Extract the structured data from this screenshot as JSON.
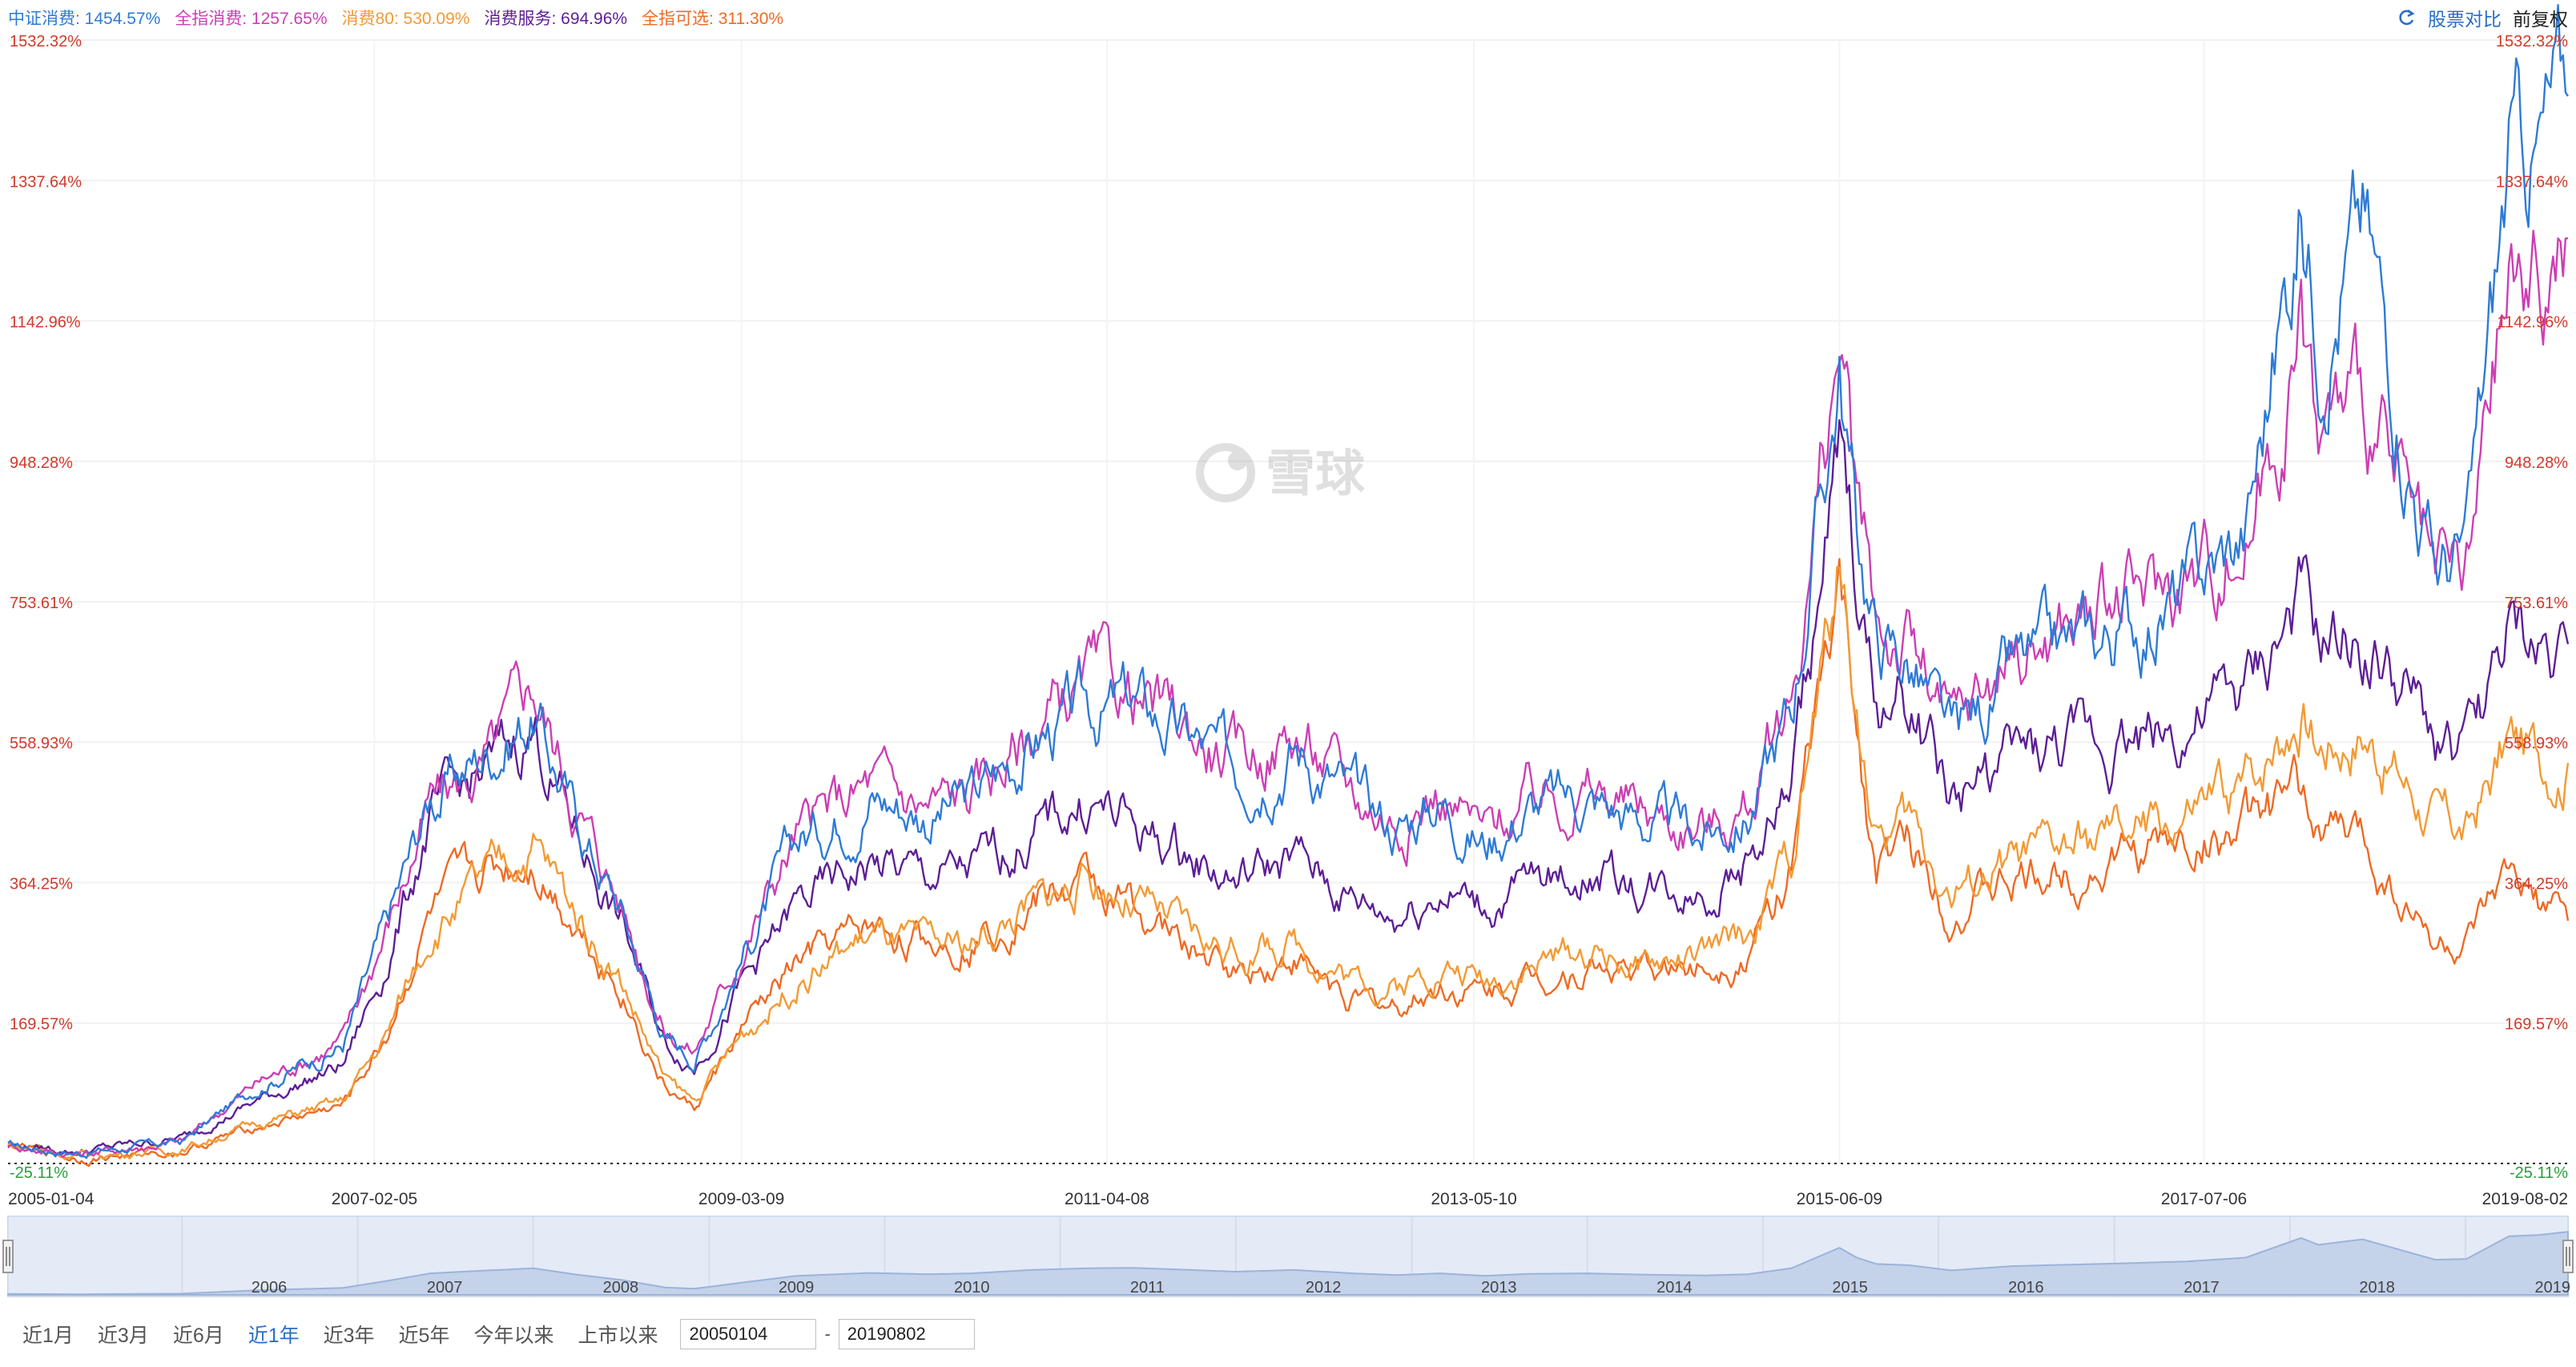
{
  "legend": [
    {
      "label": "中证消费: 1454.57%",
      "color": "#2e7bd6"
    },
    {
      "label": "全指消费: 1257.65%",
      "color": "#cc3fb4"
    },
    {
      "label": "消费80: 530.09%",
      "color": "#f39a34"
    },
    {
      "label": "消费服务: 694.96%",
      "color": "#5d1f96"
    },
    {
      "label": "全指可选: 311.30%",
      "color": "#ee6a24"
    }
  ],
  "toolbar": {
    "compare_label": "股票对比",
    "adjust_label": "前复权",
    "swap_icon": "swap-icon"
  },
  "watermark": {
    "text": "雪球",
    "icon": "snowball-logo-icon"
  },
  "range_buttons": [
    {
      "label": "近1月",
      "active": false
    },
    {
      "label": "近3月",
      "active": false
    },
    {
      "label": "近6月",
      "active": false
    },
    {
      "label": "近1年",
      "active": true
    },
    {
      "label": "近3年",
      "active": false
    },
    {
      "label": "近5年",
      "active": false
    },
    {
      "label": "今年以来",
      "active": false
    },
    {
      "label": "上市以来",
      "active": false
    }
  ],
  "date_range": {
    "start": "20050104",
    "separator": "-",
    "end": "20190802"
  },
  "chart_data": {
    "type": "line",
    "x_range": [
      "2005-01-04",
      "2019-08-02"
    ],
    "x_ticks": [
      "2005-01-04",
      "2007-02-05",
      "2009-03-09",
      "2011-04-08",
      "2013-05-10",
      "2015-06-09",
      "2017-07-06",
      "2019-08-02"
    ],
    "y_ticks": [
      -25.11,
      169.57,
      364.25,
      558.93,
      753.61,
      948.28,
      1142.96,
      1337.64,
      1532.32
    ],
    "y_tick_labels": [
      "-25.11%",
      "169.57%",
      "364.25%",
      "558.93%",
      "753.61%",
      "948.28%",
      "1142.96%",
      "1337.64%",
      "1532.32%"
    ],
    "ylim": [
      -25.11,
      1532.32
    ],
    "baseline": -25.11,
    "grid": true,
    "navigator_years": [
      "2006",
      "2007",
      "2008",
      "2009",
      "2010",
      "2011",
      "2012",
      "2013",
      "2014",
      "2015",
      "2016",
      "2017",
      "2018",
      "2019"
    ],
    "series": [
      {
        "name": "中证消费",
        "color": "#2e7bd6",
        "final": 1454.57,
        "points": [
          [
            "2005-01-04",
            0
          ],
          [
            "2005-06-01",
            -10
          ],
          [
            "2006-01-01",
            5
          ],
          [
            "2006-06-01",
            80
          ],
          [
            "2006-12-01",
            140
          ],
          [
            "2007-03-01",
            300
          ],
          [
            "2007-06-01",
            480
          ],
          [
            "2007-10-01",
            550
          ],
          [
            "2008-01-01",
            600
          ],
          [
            "2008-04-01",
            450
          ],
          [
            "2008-07-01",
            330
          ],
          [
            "2008-10-01",
            150
          ],
          [
            "2008-12-01",
            120
          ],
          [
            "2009-03-09",
            260
          ],
          [
            "2009-07-01",
            420
          ],
          [
            "2009-12-01",
            490
          ],
          [
            "2010-04-01",
            460
          ],
          [
            "2010-07-01",
            480
          ],
          [
            "2010-11-01",
            560
          ],
          [
            "2011-03-01",
            600
          ],
          [
            "2011-06-01",
            610
          ],
          [
            "2011-10-01",
            560
          ],
          [
            "2012-01-01",
            520
          ],
          [
            "2012-05-01",
            560
          ],
          [
            "2012-09-01",
            480
          ],
          [
            "2012-12-01",
            440
          ],
          [
            "2013-03-01",
            480
          ],
          [
            "2013-06-01",
            420
          ],
          [
            "2013-09-01",
            470
          ],
          [
            "2014-01-01",
            480
          ],
          [
            "2014-05-01",
            450
          ],
          [
            "2014-09-01",
            430
          ],
          [
            "2014-12-01",
            460
          ],
          [
            "2015-03-01",
            600
          ],
          [
            "2015-06-09",
            1080
          ],
          [
            "2015-07-15",
            850
          ],
          [
            "2015-08-25",
            700
          ],
          [
            "2015-11-01",
            670
          ],
          [
            "2016-01-28",
            550
          ],
          [
            "2016-06-01",
            650
          ],
          [
            "2016-12-01",
            700
          ],
          [
            "2017-06-01",
            760
          ],
          [
            "2017-10-01",
            850
          ],
          [
            "2018-01-24",
            1310
          ],
          [
            "2018-03-01",
            1150
          ],
          [
            "2018-06-01",
            1280
          ],
          [
            "2018-10-30",
            800
          ],
          [
            "2019-01-03",
            820
          ],
          [
            "2019-04-01",
            1350
          ],
          [
            "2019-06-01",
            1380
          ],
          [
            "2019-08-02",
            1454.57
          ]
        ]
      },
      {
        "name": "全指消费",
        "color": "#cc3fb4",
        "final": 1257.65,
        "points": [
          [
            "2005-01-04",
            0
          ],
          [
            "2005-06-01",
            -12
          ],
          [
            "2006-01-01",
            5
          ],
          [
            "2006-06-01",
            85
          ],
          [
            "2006-12-01",
            145
          ],
          [
            "2007-03-01",
            300
          ],
          [
            "2007-06-01",
            470
          ],
          [
            "2007-10-01",
            530
          ],
          [
            "2008-01-01",
            640
          ],
          [
            "2008-04-01",
            470
          ],
          [
            "2008-07-01",
            340
          ],
          [
            "2008-10-01",
            160
          ],
          [
            "2008-12-01",
            130
          ],
          [
            "2009-03-09",
            270
          ],
          [
            "2009-07-01",
            430
          ],
          [
            "2009-12-01",
            500
          ],
          [
            "2010-04-01",
            470
          ],
          [
            "2010-07-01",
            490
          ],
          [
            "2010-11-01",
            570
          ],
          [
            "2011-03-01",
            640
          ],
          [
            "2011-06-01",
            620
          ],
          [
            "2011-10-01",
            570
          ],
          [
            "2012-01-01",
            530
          ],
          [
            "2012-05-01",
            570
          ],
          [
            "2012-09-01",
            490
          ],
          [
            "2012-12-01",
            450
          ],
          [
            "2013-03-01",
            490
          ],
          [
            "2013-06-01",
            430
          ],
          [
            "2013-09-01",
            480
          ],
          [
            "2014-01-01",
            490
          ],
          [
            "2014-05-01",
            460
          ],
          [
            "2014-09-01",
            440
          ],
          [
            "2014-12-01",
            470
          ],
          [
            "2015-03-01",
            620
          ],
          [
            "2015-06-09",
            1110
          ],
          [
            "2015-07-15",
            870
          ],
          [
            "2015-08-25",
            720
          ],
          [
            "2015-11-01",
            690
          ],
          [
            "2016-01-28",
            570
          ],
          [
            "2016-06-01",
            680
          ],
          [
            "2016-12-01",
            740
          ],
          [
            "2017-06-01",
            780
          ],
          [
            "2017-10-01",
            840
          ],
          [
            "2018-01-24",
            1120
          ],
          [
            "2018-03-01",
            980
          ],
          [
            "2018-06-01",
            1050
          ],
          [
            "2018-10-30",
            750
          ],
          [
            "2019-01-03",
            780
          ],
          [
            "2019-04-01",
            1200
          ],
          [
            "2019-06-01",
            1180
          ],
          [
            "2019-08-02",
            1257.65
          ]
        ]
      },
      {
        "name": "消费服务",
        "color": "#5d1f96",
        "final": 694.96,
        "points": [
          [
            "2005-01-04",
            0
          ],
          [
            "2005-06-01",
            -8
          ],
          [
            "2006-01-01",
            10
          ],
          [
            "2006-06-01",
            60
          ],
          [
            "2006-12-01",
            110
          ],
          [
            "2007-03-01",
            250
          ],
          [
            "2007-06-01",
            450
          ],
          [
            "2007-10-01",
            520
          ],
          [
            "2008-01-01",
            580
          ],
          [
            "2008-04-01",
            430
          ],
          [
            "2008-07-01",
            310
          ],
          [
            "2008-10-01",
            140
          ],
          [
            "2008-12-01",
            110
          ],
          [
            "2009-03-09",
            220
          ],
          [
            "2009-07-01",
            330
          ],
          [
            "2009-12-01",
            390
          ],
          [
            "2010-04-01",
            370
          ],
          [
            "2010-07-01",
            380
          ],
          [
            "2010-11-01",
            430
          ],
          [
            "2011-03-01",
            480
          ],
          [
            "2011-06-01",
            440
          ],
          [
            "2011-10-01",
            400
          ],
          [
            "2012-01-01",
            370
          ],
          [
            "2012-05-01",
            400
          ],
          [
            "2012-09-01",
            340
          ],
          [
            "2012-12-01",
            320
          ],
          [
            "2013-03-01",
            360
          ],
          [
            "2013-06-01",
            330
          ],
          [
            "2013-09-01",
            360
          ],
          [
            "2014-01-01",
            380
          ],
          [
            "2014-05-01",
            360
          ],
          [
            "2014-09-01",
            360
          ],
          [
            "2014-12-01",
            390
          ],
          [
            "2015-03-01",
            500
          ],
          [
            "2015-06-09",
            950
          ],
          [
            "2015-07-15",
            780
          ],
          [
            "2015-08-25",
            600
          ],
          [
            "2015-11-01",
            620
          ],
          [
            "2016-01-28",
            480
          ],
          [
            "2016-06-01",
            530
          ],
          [
            "2016-12-01",
            560
          ],
          [
            "2017-06-01",
            580
          ],
          [
            "2017-10-01",
            620
          ],
          [
            "2018-01-24",
            750
          ],
          [
            "2018-03-01",
            680
          ],
          [
            "2018-06-01",
            700
          ],
          [
            "2018-10-30",
            560
          ],
          [
            "2019-01-03",
            540
          ],
          [
            "2019-04-01",
            700
          ],
          [
            "2019-06-01",
            680
          ],
          [
            "2019-08-02",
            694.96
          ]
        ]
      },
      {
        "name": "消费80",
        "color": "#f39a34",
        "final": 530.09,
        "points": [
          [
            "2005-01-04",
            0
          ],
          [
            "2005-06-01",
            -15
          ],
          [
            "2006-01-01",
            -5
          ],
          [
            "2006-06-01",
            30
          ],
          [
            "2006-12-01",
            60
          ],
          [
            "2007-03-01",
            150
          ],
          [
            "2007-06-01",
            300
          ],
          [
            "2007-10-01",
            370
          ],
          [
            "2008-01-01",
            420
          ],
          [
            "2008-04-01",
            320
          ],
          [
            "2008-07-01",
            230
          ],
          [
            "2008-10-01",
            90
          ],
          [
            "2008-12-01",
            60
          ],
          [
            "2009-03-09",
            150
          ],
          [
            "2009-07-01",
            230
          ],
          [
            "2009-12-01",
            290
          ],
          [
            "2010-04-01",
            270
          ],
          [
            "2010-07-01",
            280
          ],
          [
            "2010-11-01",
            330
          ],
          [
            "2011-03-01",
            370
          ],
          [
            "2011-06-01",
            340
          ],
          [
            "2011-10-01",
            290
          ],
          [
            "2012-01-01",
            270
          ],
          [
            "2012-05-01",
            280
          ],
          [
            "2012-09-01",
            230
          ],
          [
            "2012-12-01",
            220
          ],
          [
            "2013-03-01",
            250
          ],
          [
            "2013-06-01",
            230
          ],
          [
            "2013-09-01",
            250
          ],
          [
            "2014-01-01",
            270
          ],
          [
            "2014-05-01",
            250
          ],
          [
            "2014-09-01",
            260
          ],
          [
            "2014-12-01",
            290
          ],
          [
            "2015-03-01",
            400
          ],
          [
            "2015-06-09",
            800
          ],
          [
            "2015-07-15",
            620
          ],
          [
            "2015-08-25",
            420
          ],
          [
            "2015-11-01",
            450
          ],
          [
            "2016-01-28",
            350
          ],
          [
            "2016-06-01",
            390
          ],
          [
            "2016-12-01",
            420
          ],
          [
            "2017-06-01",
            450
          ],
          [
            "2017-10-01",
            500
          ],
          [
            "2018-01-24",
            620
          ],
          [
            "2018-03-01",
            560
          ],
          [
            "2018-06-01",
            580
          ],
          [
            "2018-10-30",
            450
          ],
          [
            "2019-01-03",
            430
          ],
          [
            "2019-04-01",
            560
          ],
          [
            "2019-06-01",
            540
          ],
          [
            "2019-08-02",
            530.09
          ]
        ]
      },
      {
        "name": "全指可选",
        "color": "#ee6a24",
        "final": 311.3,
        "points": [
          [
            "2005-01-04",
            0
          ],
          [
            "2005-06-01",
            -18
          ],
          [
            "2006-01-01",
            -8
          ],
          [
            "2006-06-01",
            25
          ],
          [
            "2006-12-01",
            55
          ],
          [
            "2007-03-01",
            150
          ],
          [
            "2007-06-01",
            320
          ],
          [
            "2007-10-01",
            380
          ],
          [
            "2008-01-01",
            400
          ],
          [
            "2008-04-01",
            310
          ],
          [
            "2008-07-01",
            220
          ],
          [
            "2008-10-01",
            80
          ],
          [
            "2008-12-01",
            50
          ],
          [
            "2009-03-09",
            160
          ],
          [
            "2009-07-01",
            250
          ],
          [
            "2009-12-01",
            300
          ],
          [
            "2010-04-01",
            280
          ],
          [
            "2010-07-01",
            290
          ],
          [
            "2010-11-01",
            340
          ],
          [
            "2011-03-01",
            360
          ],
          [
            "2011-06-01",
            330
          ],
          [
            "2011-10-01",
            270
          ],
          [
            "2012-01-01",
            240
          ],
          [
            "2012-05-01",
            260
          ],
          [
            "2012-09-01",
            200
          ],
          [
            "2012-12-01",
            190
          ],
          [
            "2013-03-01",
            220
          ],
          [
            "2013-06-01",
            210
          ],
          [
            "2013-09-01",
            230
          ],
          [
            "2014-01-01",
            250
          ],
          [
            "2014-05-01",
            240
          ],
          [
            "2014-09-01",
            250
          ],
          [
            "2014-12-01",
            270
          ],
          [
            "2015-03-01",
            380
          ],
          [
            "2015-06-09",
            760
          ],
          [
            "2015-07-15",
            580
          ],
          [
            "2015-08-25",
            380
          ],
          [
            "2015-11-01",
            420
          ],
          [
            "2016-01-28",
            330
          ],
          [
            "2016-06-01",
            360
          ],
          [
            "2016-12-01",
            390
          ],
          [
            "2017-06-01",
            420
          ],
          [
            "2017-10-01",
            440
          ],
          [
            "2018-01-24",
            480
          ],
          [
            "2018-03-01",
            440
          ],
          [
            "2018-06-01",
            420
          ],
          [
            "2018-10-30",
            280
          ],
          [
            "2019-01-03",
            270
          ],
          [
            "2019-04-01",
            360
          ],
          [
            "2019-06-01",
            330
          ],
          [
            "2019-08-02",
            311.3
          ]
        ]
      }
    ]
  }
}
